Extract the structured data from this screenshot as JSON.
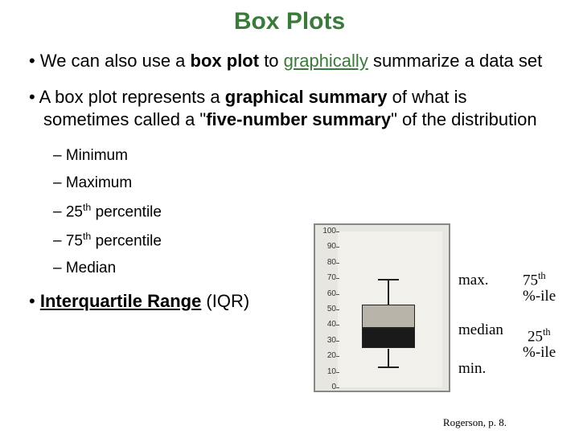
{
  "title": "Box Plots",
  "bullets": {
    "b1_pre": "We can also use a ",
    "b1_bold": "box plot",
    "b1_mid": " to ",
    "b1_green": "graphically",
    "b1_post": " summarize a data set",
    "b2_pre": "A box plot represents a ",
    "b2_bold1": "graphical summary",
    "b2_mid": " of what is sometimes called a \"",
    "b2_bold2": "five-number summary",
    "b2_post": "\" of the distribution",
    "sub1": "Minimum",
    "sub2": "Maximum",
    "sub3_pre": "25",
    "sub3_sup": "th",
    "sub3_post": " percentile",
    "sub4_pre": "75",
    "sub4_sup": "th",
    "sub4_post": " percentile",
    "sub5": "Median",
    "iqr_pre": "Interquartile Range",
    "iqr_post": " (IQR)"
  },
  "chart": {
    "y_ticks": [
      100,
      90,
      80,
      70,
      60,
      50,
      40,
      30,
      20,
      10,
      0
    ],
    "y_min": 0,
    "y_max": 100,
    "box_max": 69,
    "q3": 53,
    "median": 38,
    "q1": 25,
    "box_min": 13,
    "frame_bg": "#e8e6e0",
    "plot_bg": "#f2f0ea",
    "upper_box_fill": "#b8b4aa",
    "lower_box_fill": "#1a1a1a",
    "line_color": "#222222"
  },
  "annotations": {
    "max": "max.",
    "median": "median",
    "min": "min.",
    "p75a": "75",
    "p75b": "th",
    "pile": "%-ile",
    "p25a": "25",
    "p25b": "th"
  },
  "citation": "Rogerson, p. 8."
}
